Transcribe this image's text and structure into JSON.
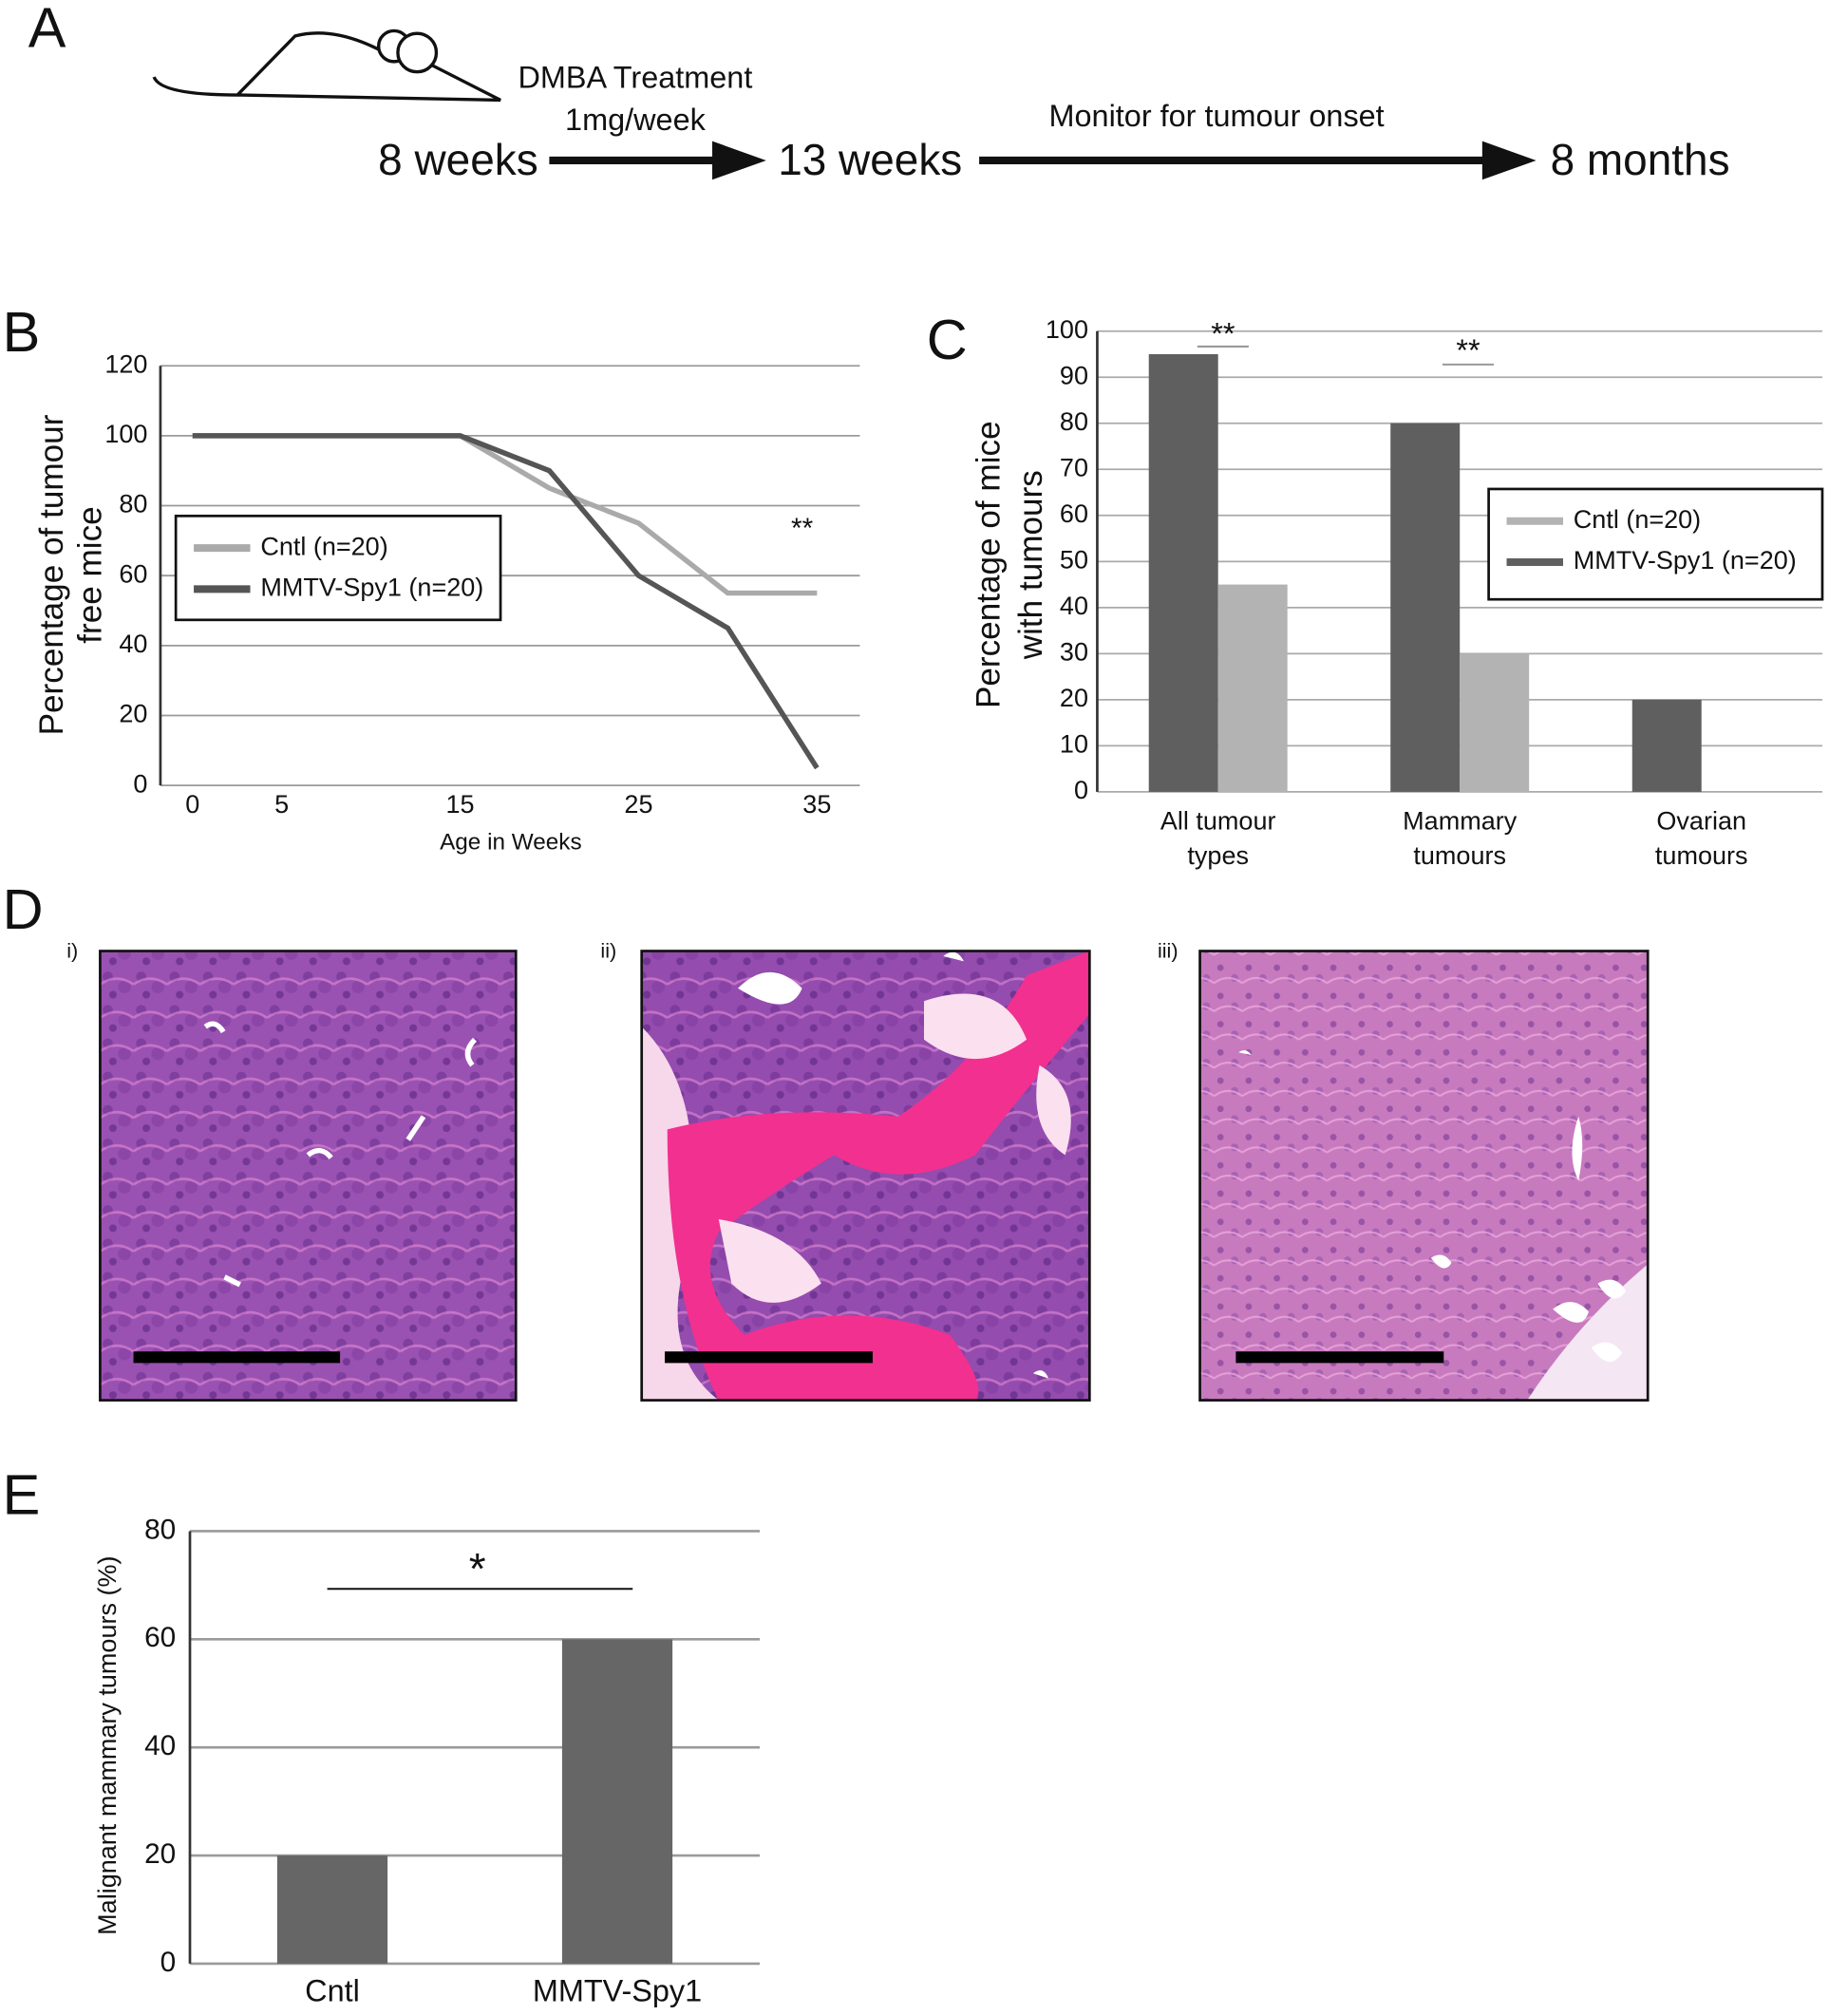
{
  "figure": {
    "panel_labels": [
      "A",
      "B",
      "C",
      "D",
      "E"
    ],
    "timeline": {
      "treatment": "DMBA Treatment",
      "dose": "1mg/week",
      "monitor": "Monitor for tumour onset",
      "start": "8 weeks",
      "middle": "13 weeks",
      "end": "8 months"
    },
    "images": {
      "labels": [
        "i)",
        "ii)",
        "iii)"
      ]
    }
  },
  "chart_data": [
    {
      "type": "line",
      "x": [
        0,
        5,
        10,
        15,
        20,
        25,
        30,
        35
      ],
      "xlim": [
        -1.8,
        37.4
      ],
      "xticks": [
        0,
        5,
        15,
        25,
        35
      ],
      "ylim": [
        0,
        120
      ],
      "yticks": [
        0,
        20,
        40,
        60,
        80,
        100,
        120
      ],
      "grid": true,
      "legend": "left",
      "xlabel": "Age in Weeks",
      "ylabel": [
        "Percentage of tumour",
        "free mice"
      ],
      "series": [
        {
          "name": "Cntl (n=20)",
          "color": "#aaaaaa",
          "values": [
            100,
            100,
            100,
            100,
            85,
            75,
            55,
            55
          ]
        },
        {
          "name": "MMTV-Spy1 (n=20)",
          "color": "#555555",
          "values": [
            100,
            100,
            100,
            100,
            90,
            60,
            45,
            5
          ]
        }
      ],
      "annotations": [
        "**"
      ]
    },
    {
      "type": "bar",
      "categories": [
        [
          "All tumour",
          "types"
        ],
        [
          "Mammary",
          "tumours"
        ],
        [
          "Ovarian",
          "tumours"
        ]
      ],
      "ylim": [
        0,
        100
      ],
      "yticks": [
        0,
        10,
        20,
        30,
        40,
        50,
        60,
        70,
        80,
        90,
        100
      ],
      "grid": true,
      "legend": "right",
      "ylabel": [
        "Percentage of mice",
        "with tumours"
      ],
      "series": [
        {
          "name": "MMTV-Spy1 (n=20)",
          "color": "#5f5f5f",
          "values": [
            95,
            80,
            20
          ]
        },
        {
          "name": "Cntl (n=20)",
          "color": "#b3b3b3",
          "values": [
            45,
            30,
            0
          ]
        }
      ],
      "annotations": [
        "**",
        "**"
      ]
    },
    {
      "type": "bar",
      "categories": [
        "Cntl",
        "MMTV-Spy1"
      ],
      "values": [
        20,
        60
      ],
      "color": "#666666",
      "ylim": [
        0,
        80
      ],
      "yticks": [
        0,
        20,
        40,
        60,
        80
      ],
      "grid": true,
      "ylabel": "Malignant mammary tumours (%)",
      "annotations": [
        "*"
      ]
    }
  ]
}
